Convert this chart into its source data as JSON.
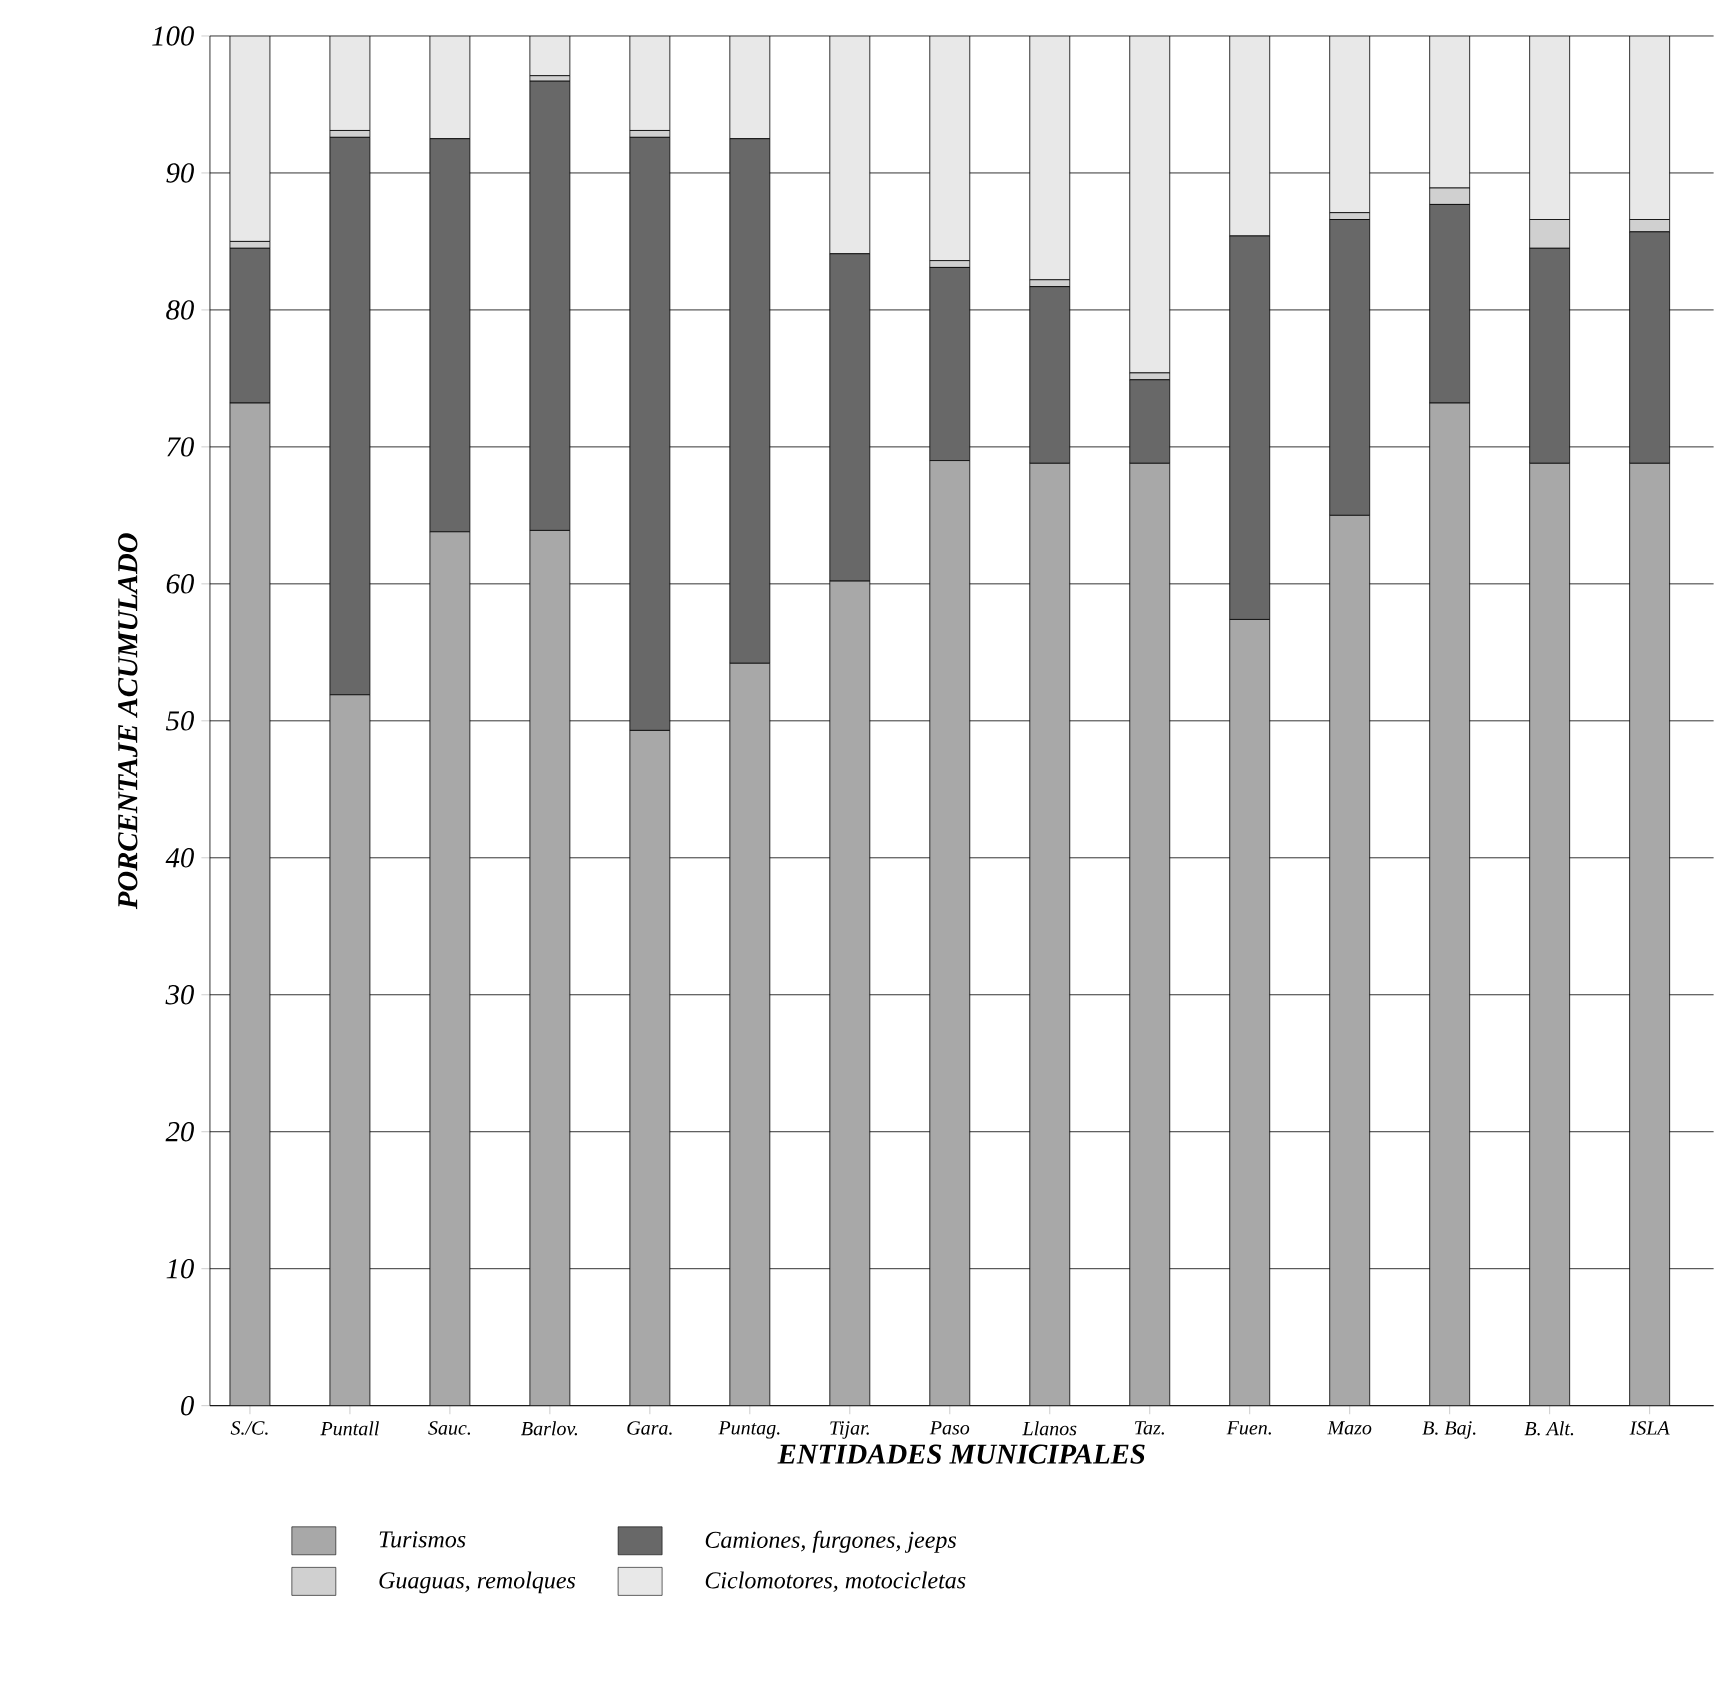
{
  "chart_data": {
    "type": "bar",
    "stacked": true,
    "xlabel": "ENTIDADES MUNICIPALES",
    "ylabel": "PORCENTAJE ACUMULADO",
    "categories": [
      "S./C.",
      "Puntall",
      "Sauc.",
      "Barlov.",
      "Gara.",
      "Puntag.",
      "Tijar.",
      "Paso",
      "Llanos",
      "Taz.",
      "Fuen.",
      "Mazo",
      "B. Baj.",
      "B. Alt.",
      "ISLA"
    ],
    "series": [
      {
        "name": "Turismos",
        "color": "#a8a8a8",
        "values": [
          73.2,
          51.9,
          63.8,
          63.9,
          49.3,
          54.2,
          60.2,
          69.0,
          68.8,
          68.8,
          57.4,
          65.0,
          73.2,
          68.8,
          68.8
        ]
      },
      {
        "name": "Camiones, furgones, jeeps",
        "color": "#686868",
        "values": [
          11.3,
          40.7,
          28.7,
          32.8,
          43.3,
          38.3,
          23.9,
          14.1,
          12.9,
          6.1,
          28.0,
          21.6,
          14.5,
          15.7,
          16.9
        ]
      },
      {
        "name": "Guaguas, remolques",
        "color": "#d0d0d0",
        "values": [
          0.5,
          0.5,
          0,
          0.4,
          0.5,
          0,
          0,
          0.5,
          0.5,
          0.5,
          0,
          0.5,
          1.2,
          2.1,
          0.9
        ]
      },
      {
        "name": "Ciclomotores, motocicletas",
        "color": "#e8e8e8",
        "values": [
          15.0,
          6.9,
          7.5,
          2.9,
          6.9,
          7.5,
          15.9,
          16.4,
          17.8,
          24.6,
          14.6,
          12.9,
          11.1,
          13.4,
          13.4
        ]
      }
    ],
    "ylim": [
      0,
      100
    ],
    "yticks": [
      0,
      10,
      20,
      30,
      40,
      50,
      60,
      70,
      80,
      90,
      100
    ],
    "grid": "y",
    "legend": "bottom"
  }
}
